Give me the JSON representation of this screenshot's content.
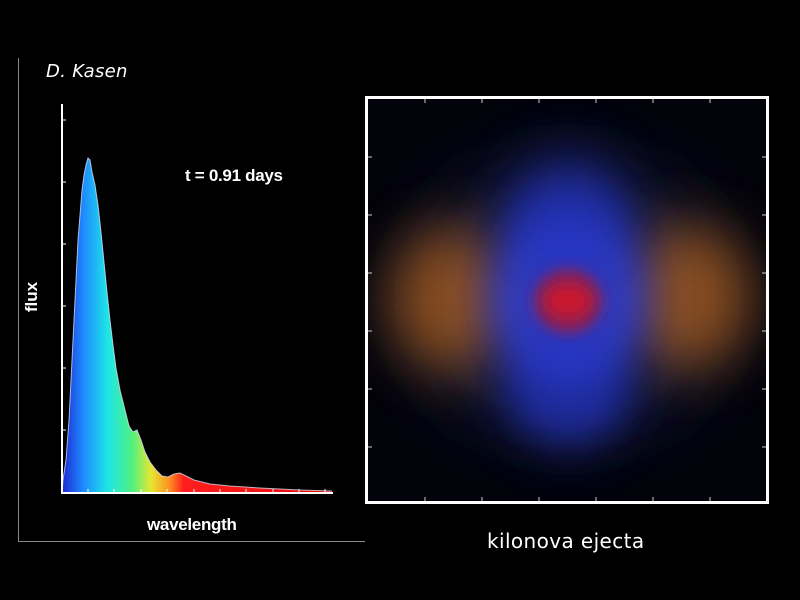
{
  "credit": "D. Kasen",
  "spectrum_panel": {
    "time_label": "t = 0.91 days",
    "y_axis_label": "flux",
    "x_axis_label": "wavelength"
  },
  "ejecta_panel": {
    "caption": "kilonova ejecta",
    "colors": {
      "lobes": "#b4641e",
      "halo": "#2a3ad2",
      "core": "#c8142a"
    }
  },
  "colors": {
    "spectrum_gradient": [
      "#1e28d2",
      "#1e8cff",
      "#1ee6e6",
      "#50f080",
      "#e6e632",
      "#ff8c1e",
      "#ff1e1e",
      "#e60a0a"
    ]
  }
}
